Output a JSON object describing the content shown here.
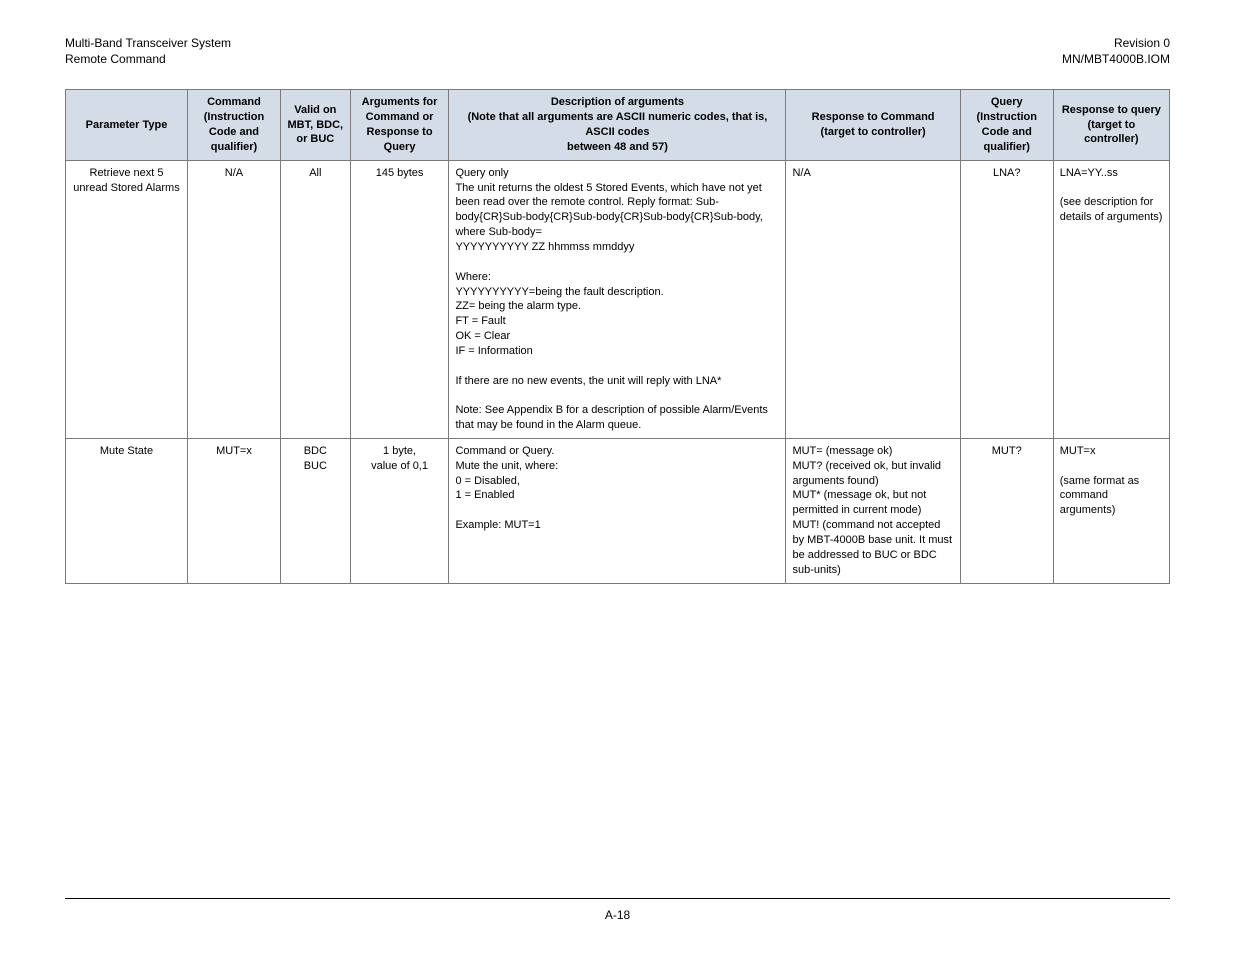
{
  "header": {
    "left_line1": "Multi-Band Transceiver System",
    "left_line2": "Remote Command",
    "right_line1": "Revision 0",
    "right_line2": "MN/MBT4000B.IOM"
  },
  "columns": [
    "Parameter Type",
    "Command (Instruction Code and qualifier)",
    "Valid on MBT, BDC, or BUC",
    "Arguments for Command or Response to Query",
    "Description of arguments\n(Note that all arguments are ASCII numeric codes, that is, ASCII codes\nbetween 48 and 57)",
    "Response to Command\n(target to controller)",
    "Query (Instruction Code and qualifier)",
    "Response to query\n(target to controller)"
  ],
  "rows": [
    {
      "param": "Retrieve next 5 unread Stored Alarms",
      "cmd": "N/A",
      "valid": "All",
      "args": "145 bytes",
      "desc": "Query only\nThe unit returns the oldest 5 Stored Events, which have not yet been read over the remote control. Reply format: Sub-body{CR}Sub-body{CR}Sub-body{CR}Sub-body{CR}Sub-body, where Sub-body=\nYYYYYYYYYY ZZ hhmmss mmddyy\n\nWhere:\nYYYYYYYYYY=being the fault description.\nZZ= being the alarm type.\nFT = Fault\nOK = Clear\nIF = Information\n\nIf there are no new events, the unit will reply with LNA*\n\nNote: See Appendix B for a description of possible Alarm/Events that may be found in the Alarm queue.",
      "resp": "N/A",
      "query": "LNA?",
      "rquery": "LNA=YY..ss\n\n(see description for details of arguments)"
    },
    {
      "param": "Mute State",
      "cmd": "MUT=x",
      "valid": "BDC\nBUC",
      "args": "1 byte,\nvalue of 0,1",
      "desc": "Command or Query.\nMute the unit, where:\n0 = Disabled,\n1 = Enabled\n\nExample: MUT=1",
      "resp": "MUT= (message ok)\nMUT? (received ok, but invalid arguments found)\nMUT* (message ok, but not permitted in current mode)\nMUT! (command not accepted by MBT-4000B base unit.  It must be addressed to BUC or BDC sub-units)",
      "query": "MUT?",
      "rquery": "MUT=x\n\n(same format as command arguments)"
    }
  ],
  "footer": {
    "page": "A-18"
  }
}
